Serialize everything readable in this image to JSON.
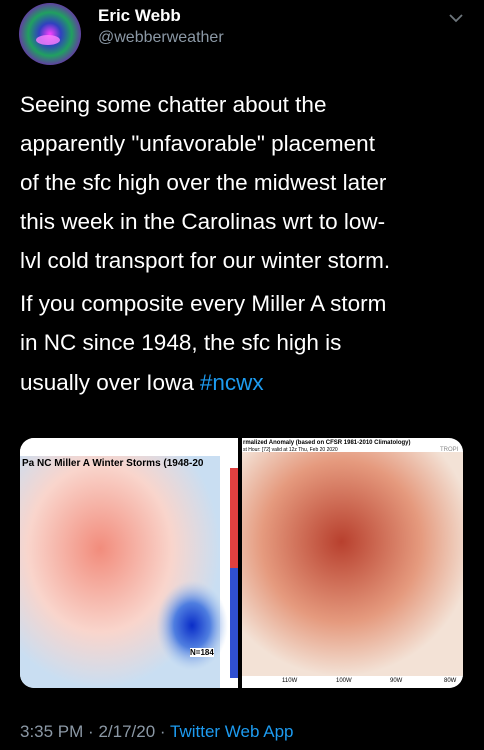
{
  "tweet": {
    "author": {
      "name": "Eric Webb",
      "handle": "@webberweather"
    },
    "text_lines": [
      "Seeing some chatter about the",
      "apparently \"unfavorable\" placement",
      "of the sfc high over the midwest later",
      "this week in the Carolinas wrt to low-",
      "lvl cold transport for our winter storm.",
      "If you composite every Miller A storm",
      "in NC since 1948, the sfc high is",
      "usually over Iowa"
    ],
    "hashtag": "#ncwx",
    "images": [
      {
        "title": "Pa NC Miller A Winter Storms (1948-20",
        "note": "N=184"
      },
      {
        "title": "rmalized Anomaly (based on CFSR 1981-2010 Climatology)",
        "subtitle": "st Hour: [72]  valid at 12z Thu, Feb 20 2020",
        "corner": "TROPI",
        "axis": [
          "110W",
          "100W",
          "90W",
          "80W"
        ]
      }
    ],
    "footer": {
      "time": "3:35 PM",
      "separator": "·",
      "date": "2/17/20",
      "source": "Twitter Web App"
    }
  }
}
